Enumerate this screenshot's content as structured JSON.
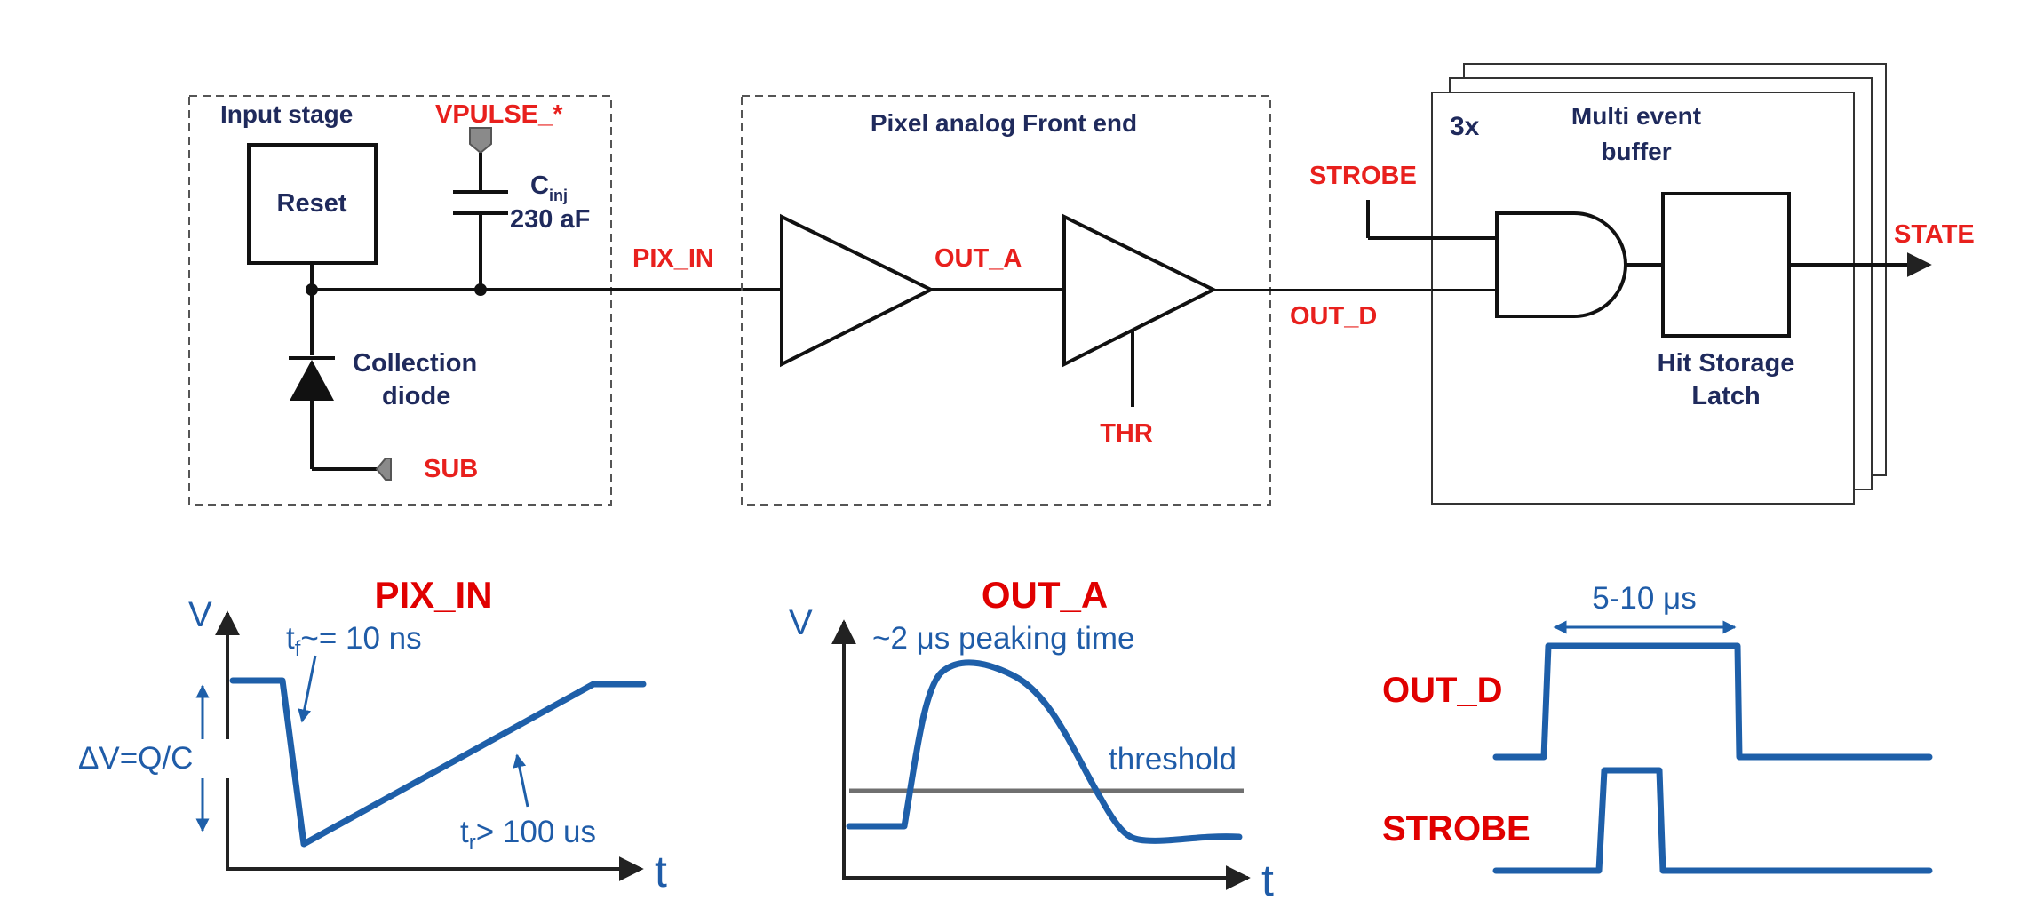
{
  "top": {
    "input_stage": "Input stage",
    "vpulse": "VPULSE_*",
    "reset": "Reset",
    "cinj_main": "C",
    "cinj_sub": "inj",
    "cinj_value": "230 aF",
    "collection_1": "Collection",
    "collection_2": "diode",
    "sub": "SUB",
    "pix_in": "PIX_IN",
    "afe_title": "Pixel analog Front end",
    "out_a": "OUT_A",
    "thr": "THR",
    "out_d": "OUT_D",
    "strobe": "STROBE",
    "times": "3x",
    "meb_1": "Multi event",
    "meb_2": "buffer",
    "latch_1": "Hit Storage",
    "latch_2": "Latch",
    "state": "STATE"
  },
  "waves": {
    "pix_in_title": "PIX_IN",
    "v1": "V",
    "t1": "t",
    "tf_main": "t",
    "tf_sub": "f",
    "tf_rest": "~= 10 ns",
    "dv": "ΔV=Q/C",
    "tr_main": "t",
    "tr_sub": "r",
    "tr_rest": "> 100 us",
    "out_a_title": "OUT_A",
    "v2": "V",
    "t2": "t",
    "peaking": "~2 μs peaking time",
    "threshold": "threshold",
    "width": "5-10 μs",
    "out_d": "OUT_D",
    "strobe": "STROBE"
  },
  "colors": {
    "label_red": "#e8201d",
    "navy": "#1f2a5c",
    "signal_blue": "#1e5fa9"
  }
}
